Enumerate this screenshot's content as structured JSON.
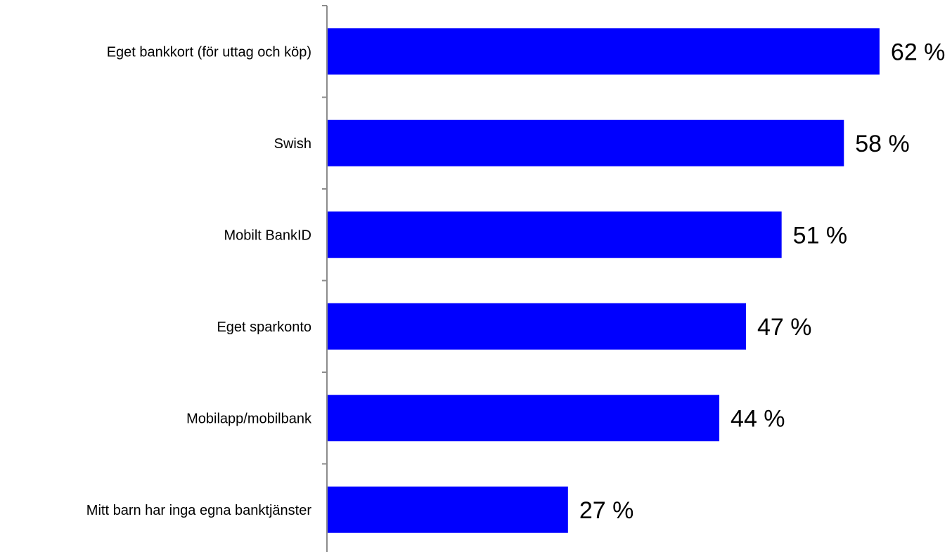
{
  "chart_data": {
    "type": "bar",
    "orientation": "horizontal",
    "title": "",
    "xlabel": "",
    "ylabel": "",
    "categories": [
      "Eget bankkort (för uttag och köp)",
      "Swish",
      "Mobilt BankID",
      "Eget sparkonto",
      "Mobilapp/mobilbank",
      "Mitt barn har inga egna banktjänster"
    ],
    "values": [
      62,
      58,
      51,
      47,
      44,
      27
    ],
    "value_labels": [
      "62 %",
      "58 %",
      "51 %",
      "47 %",
      "44 %",
      "27 %"
    ],
    "unit": "%",
    "xlim": [
      0,
      100
    ],
    "grid": false,
    "legend": "none",
    "bar_color": "#0000FF",
    "axis_color": "#8C8C8C"
  }
}
